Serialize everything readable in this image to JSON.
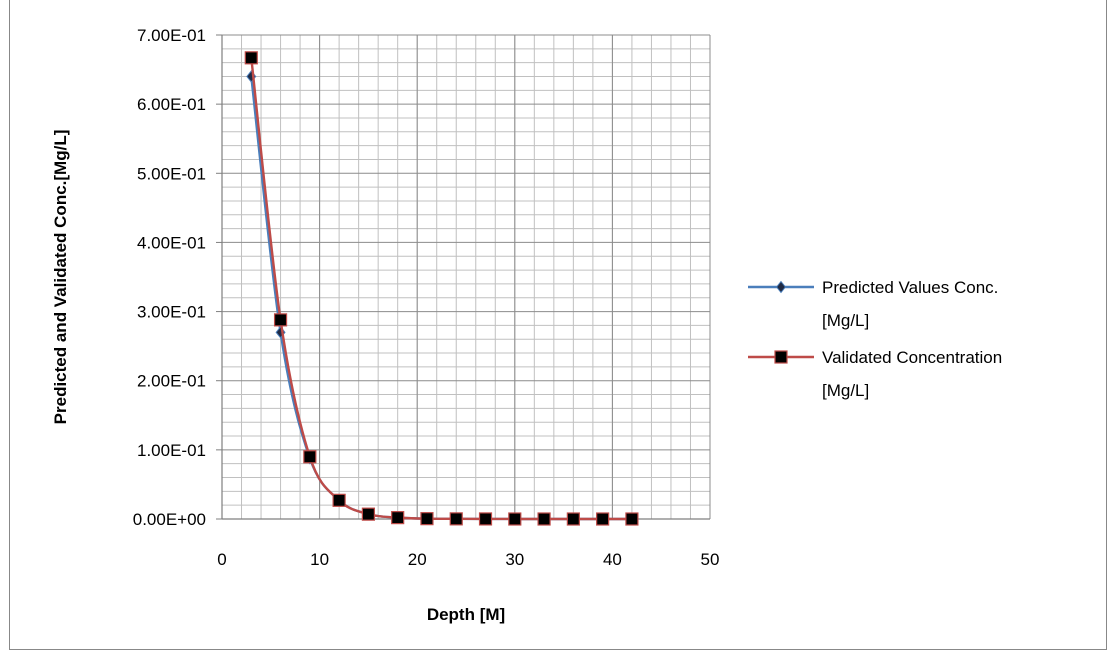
{
  "chart_data": {
    "type": "line",
    "title": "",
    "xlabel": "Depth [M]",
    "ylabel": "Predicted and Validated Conc.[Mg/L]",
    "xlim": [
      0,
      50
    ],
    "ylim": [
      0,
      0.7
    ],
    "x_ticks": [
      0,
      10,
      20,
      30,
      40,
      50
    ],
    "x_tick_labels": [
      "0",
      "10",
      "20",
      "30",
      "40",
      "50"
    ],
    "y_ticks": [
      0,
      0.1,
      0.2,
      0.3,
      0.4,
      0.5,
      0.6,
      0.7
    ],
    "y_tick_labels": [
      "0.00E+00",
      "1.00E-01",
      "2.00E-01",
      "3.00E-01",
      "4.00E-01",
      "5.00E-01",
      "6.00E-01",
      "7.00E-01"
    ],
    "grid": true,
    "smooth": true,
    "legend_position": "right",
    "x": [
      3,
      6,
      9,
      12,
      15,
      18,
      21,
      24,
      27,
      30,
      33,
      36,
      39,
      42
    ],
    "series": [
      {
        "name": "Predicted Values Conc. [Mg/L]",
        "legend_lines": [
          "Predicted  Values Conc.",
          "[Mg/L]"
        ],
        "color": "#4a7ebb",
        "marker": "diamond",
        "marker_color": "#1f2a44",
        "values": [
          0.64,
          0.27,
          0.088,
          0.027,
          0.007,
          0.002,
          0.0005,
          0.0002,
          0.0001,
          0.0,
          0.0,
          0.0,
          0.0,
          0.0
        ]
      },
      {
        "name": "Validated Concentration [Mg/L]",
        "legend_lines": [
          "Validated  Concentration",
          "[Mg/L]"
        ],
        "color": "#be4b48",
        "marker": "square",
        "marker_color": "#000000",
        "values": [
          0.667,
          0.288,
          0.09,
          0.027,
          0.007,
          0.002,
          0.0005,
          0.0002,
          0.0001,
          0.0,
          0.0,
          0.0,
          0.0,
          0.0
        ]
      }
    ]
  }
}
